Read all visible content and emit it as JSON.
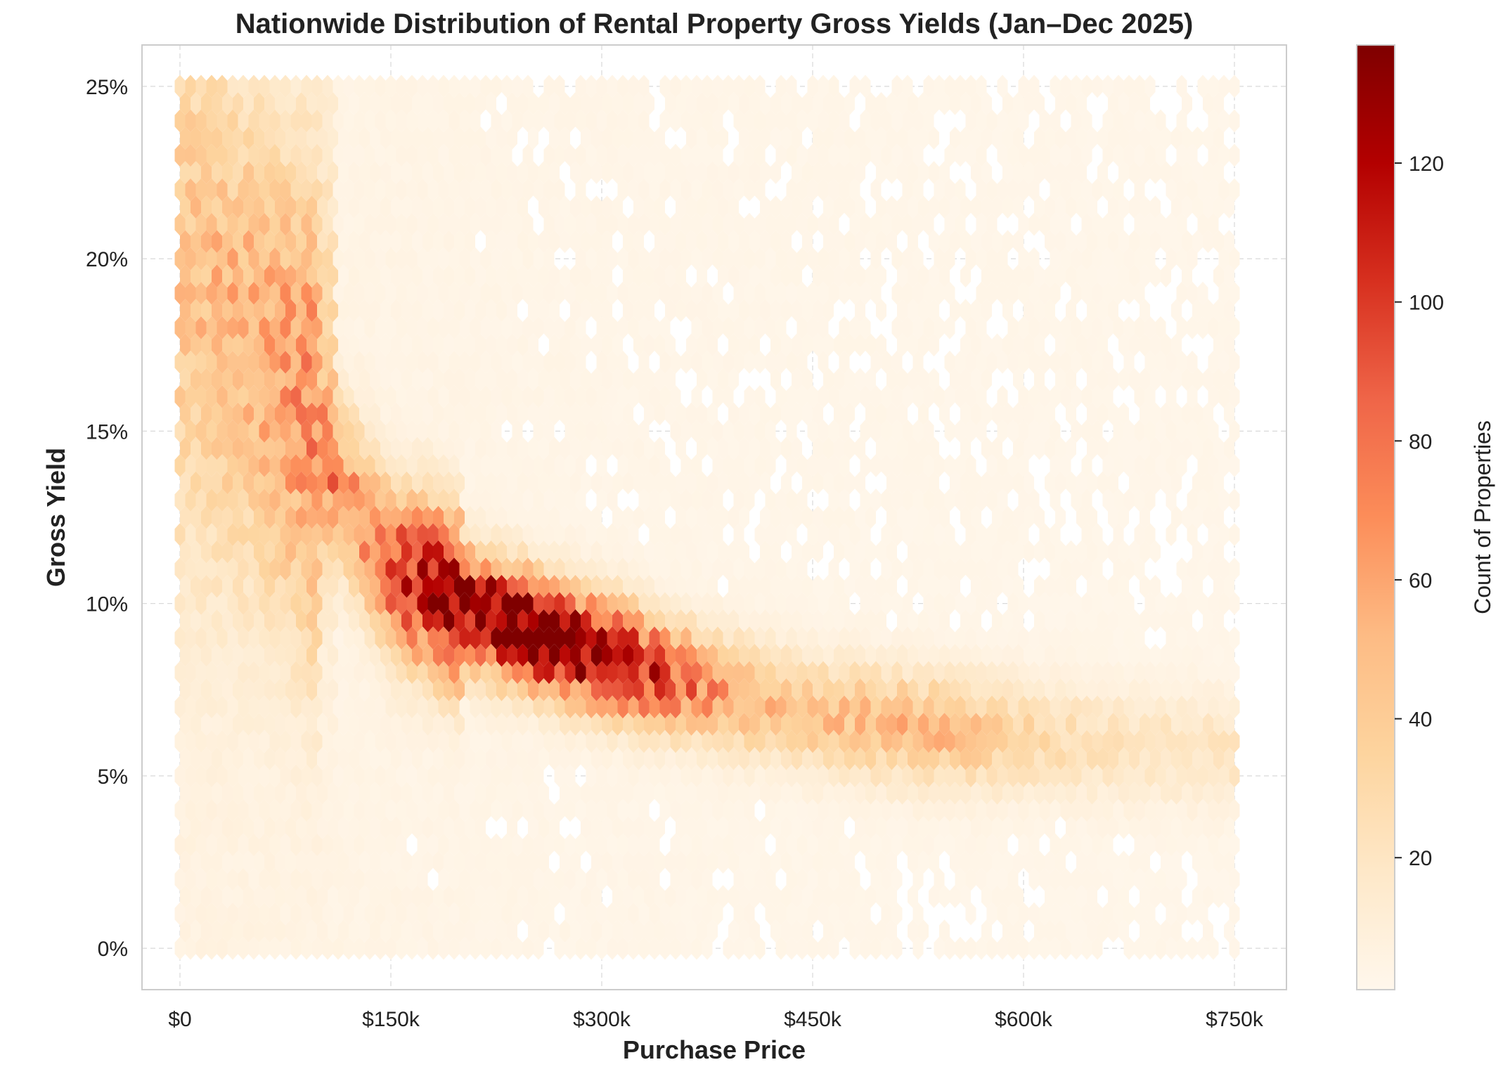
{
  "chart_data": {
    "type": "heatmap",
    "subtype": "hexbin",
    "title": "Nationwide Distribution of Rental Property Gross Yields (Jan–Dec 2025)",
    "xlabel": "Purchase Price",
    "ylabel": "Gross Yield",
    "x_ticks": [
      {
        "value": 0,
        "label": "$0"
      },
      {
        "value": 150000,
        "label": "$150k"
      },
      {
        "value": 300000,
        "label": "$300k"
      },
      {
        "value": 450000,
        "label": "$450k"
      },
      {
        "value": 600000,
        "label": "$600k"
      },
      {
        "value": 750000,
        "label": "$750k"
      }
    ],
    "y_ticks": [
      {
        "value": 0,
        "label": "0%"
      },
      {
        "value": 5,
        "label": "5%"
      },
      {
        "value": 10,
        "label": "10%"
      },
      {
        "value": 15,
        "label": "15%"
      },
      {
        "value": 20,
        "label": "20%"
      },
      {
        "value": 25,
        "label": "25%"
      }
    ],
    "xlim": [
      -27000,
      787000
    ],
    "ylim": [
      -1.2,
      26.2
    ],
    "x_data_range": [
      0,
      750000
    ],
    "y_data_range": [
      0,
      25
    ],
    "grid": true,
    "colorbar": {
      "label": "Count of Properties",
      "range": [
        1,
        137
      ],
      "ticks": [
        20,
        40,
        60,
        80,
        100,
        120
      ],
      "colormap": "OrRd",
      "colors": [
        "#fff7ec",
        "#fee8c8",
        "#fdd49e",
        "#fdbb84",
        "#fc8d59",
        "#ef6548",
        "#d7301f",
        "#b30000",
        "#7f0000"
      ]
    },
    "density_ridge": {
      "description_points_price": [
        70000,
        150000,
        220000,
        300000,
        380000,
        450000,
        520000,
        600000,
        680000,
        750000
      ],
      "description_points_yield": [
        16.5,
        11.0,
        9.6,
        8.5,
        7.5,
        6.8,
        6.4,
        6.1,
        5.9,
        5.7
      ],
      "peak_count_near": {
        "price": 230000,
        "yield": 9.6
      }
    }
  }
}
